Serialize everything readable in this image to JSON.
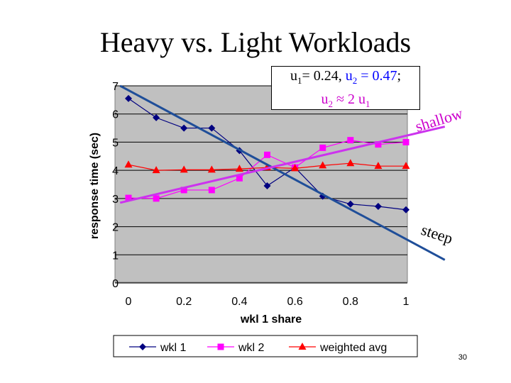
{
  "slide": {
    "title": "Heavy vs. Light Workloads",
    "page_number": "30"
  },
  "note": {
    "u1_label": "u",
    "u1_sub": "1",
    "u1_value": "= 0.24, ",
    "u2_label": "u",
    "u2_sub": "2",
    "u2_value": " = 0.47",
    "semicolon": ";",
    "line2_u2": "u",
    "line2_u2_sub": "2",
    "line2_approx": " ≈ 2 u",
    "line2_u1_sub": "1"
  },
  "annotations": {
    "shallow": "shallow",
    "steep": "steep"
  },
  "chart_data": {
    "type": "line",
    "xlabel": "wkl 1 share",
    "ylabel": "response time (sec)",
    "xlim": [
      0,
      1
    ],
    "ylim": [
      0,
      7
    ],
    "x_ticks": [
      "0",
      "0.2",
      "0.4",
      "0.6",
      "0.8",
      "1"
    ],
    "y_ticks": [
      "0",
      "1",
      "2",
      "3",
      "4",
      "5",
      "6",
      "7"
    ],
    "x": [
      0,
      0.1,
      0.2,
      0.3,
      0.4,
      0.5,
      0.6,
      0.7,
      0.8,
      0.9,
      1.0
    ],
    "series": [
      {
        "name": "wkl 1",
        "color": "#000080",
        "marker": "diamond",
        "values": [
          6.55,
          5.87,
          5.5,
          5.5,
          4.7,
          3.45,
          4.1,
          3.08,
          2.8,
          2.72,
          2.6
        ]
      },
      {
        "name": "wkl 2",
        "color": "#ff00ff",
        "marker": "square",
        "values": [
          3.02,
          3.0,
          3.3,
          3.3,
          3.72,
          4.55,
          4.1,
          4.8,
          5.07,
          4.92,
          5.0
        ]
      },
      {
        "name": "weighted avg",
        "color": "#ff0000",
        "marker": "triangle",
        "values": [
          4.2,
          4.0,
          4.02,
          4.02,
          4.05,
          4.1,
          4.07,
          4.17,
          4.25,
          4.15,
          4.15
        ]
      }
    ],
    "trend_lines": [
      {
        "label": "steep",
        "color": "#1f4e99",
        "from": [
          -0.03,
          7.0
        ],
        "to": [
          1.14,
          0.82
        ]
      },
      {
        "label": "shallow",
        "color": "#cc33ee",
        "from": [
          -0.03,
          2.85
        ],
        "to": [
          1.14,
          5.55
        ]
      }
    ],
    "grid": true,
    "legend": "bottom",
    "plot_background": "#c0c0c0"
  }
}
